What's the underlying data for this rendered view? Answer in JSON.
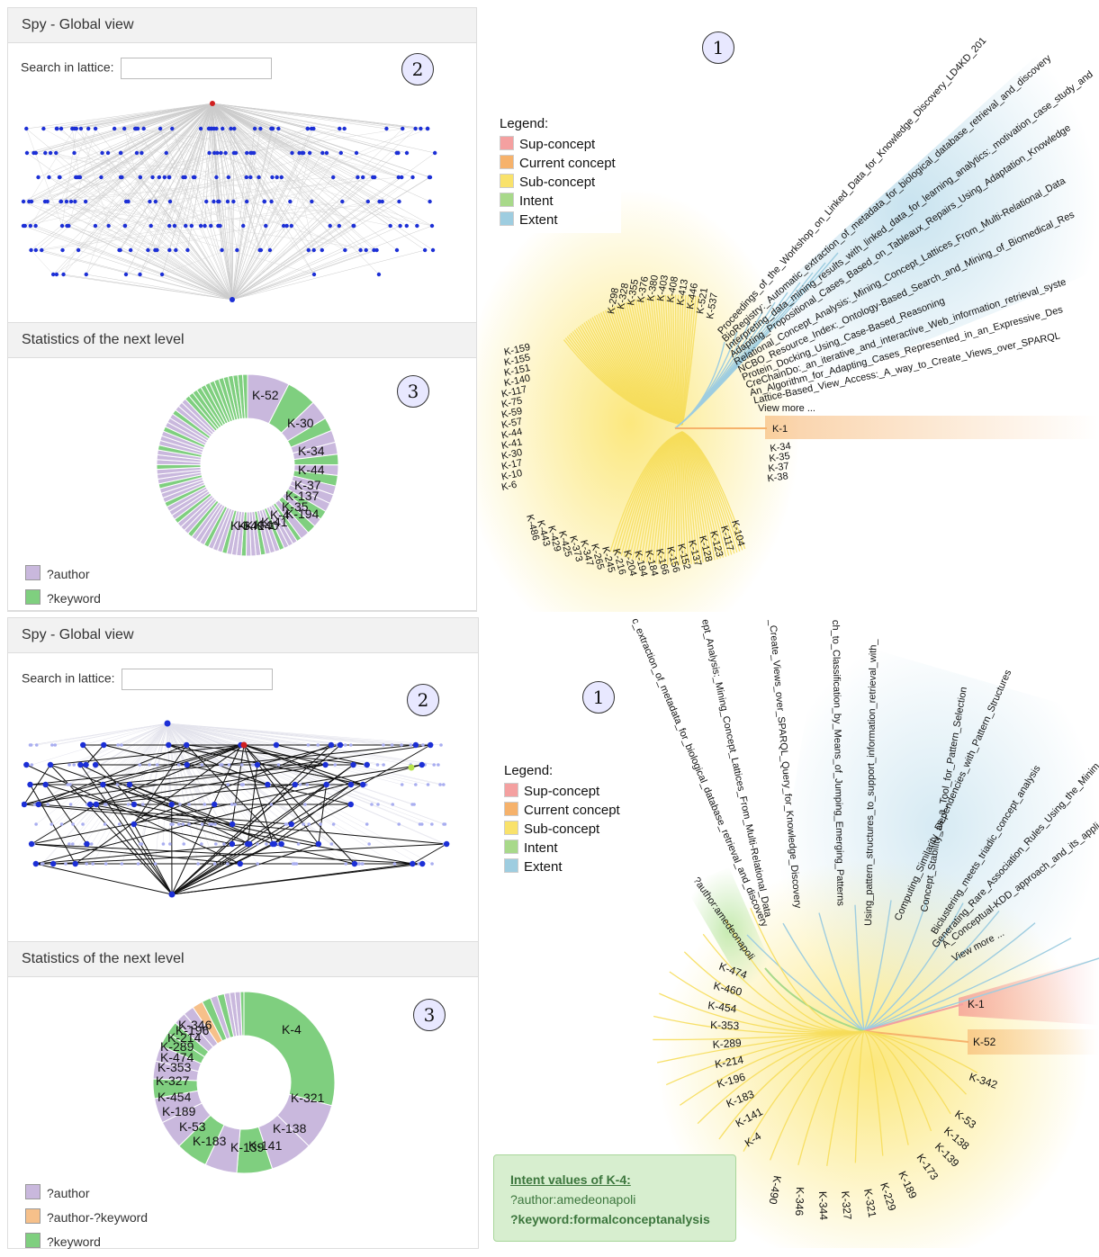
{
  "top": {
    "panel_title": "Spy - Global view",
    "search_label": "Search in lattice:",
    "search_value": "",
    "stats_title": "Statistics of the next level",
    "marker_1": "1",
    "marker_2": "2",
    "marker_3": "3",
    "legend": {
      "title": "Legend:",
      "items": [
        "Sup-concept",
        "Current concept",
        "Sub-concept",
        "Intent",
        "Extent"
      ]
    },
    "legend_colors": [
      "#f4a0a0",
      "#f6b26b",
      "#f9e26b",
      "#a8d98a",
      "#9ecde0"
    ],
    "stat_legend": [
      "?author",
      "?keyword"
    ],
    "stat_colors": [
      "#c9b8dd",
      "#7fcf7f"
    ],
    "donut_labels": [
      "K-52",
      "K-30",
      "K-34",
      "K-44",
      "K-37",
      "K-137",
      "K-35",
      "K-194",
      "K-4",
      "K-41",
      "K-1",
      "K-140",
      "K-40",
      "K-6"
    ],
    "current_label": "K-1",
    "sub_labels": [
      "K-34",
      "K-35",
      "K-37",
      "K-38"
    ],
    "left_labels": [
      "K-6",
      "K-10",
      "K-17",
      "K-30",
      "K-41",
      "K-44",
      "K-57",
      "K-59",
      "K-75",
      "K-117",
      "K-140",
      "K-151",
      "K-155",
      "K-159"
    ],
    "top_arc_labels": [
      "K-537",
      "K-521",
      "K-446",
      "K-413",
      "K-408",
      "K-403",
      "K-380",
      "K-376",
      "K-355",
      "K-328",
      "K-298"
    ],
    "bottom_arc_labels": [
      "K-486",
      "K-443",
      "K-429",
      "K-425",
      "K-373",
      "K-347",
      "K-265",
      "K-245",
      "K-216",
      "K-204",
      "K-194",
      "K-184",
      "K-166",
      "K-156",
      "K-152",
      "K-137",
      "K-128",
      "K-123",
      "K-117",
      "K-104"
    ],
    "extent_items": [
      "Proceedings_of_the_Workshop_on_Linked_Data_for_Knowledge_Discovery_LD4KD_201",
      "BioRegistry:_Automatic_extraction_of_metadata_for_biological_database_retrieval_and_discovery",
      "Interpreting_data_mining_results_with_linked_data_for_learning_analytics:_motivation_case_study_and",
      "Adapting_Propositional_Cases_Based_on_Tableaux_Repairs_Using_Adaptation_Knowledge",
      "Relational_Concept_Analysis:_Mining_Concept_Lattices_From_Multi-Relational_Data",
      "NCBO_Resource_Index:_Ontology-Based_Search_and_Mining_of_Biomedical_Res",
      "Protein_Docking_Using_Case-Based_Reasoning",
      "CreChainDo:_an_iterative_and_interactive_Web_information_retrieval_syste",
      "An_Algorithm_for_Adapting_Cases_Represented_in_an_Expressive_Des",
      "Lattice-Based_View_Access:_A_way_to_Create_Views_over_SPARQL",
      "View more ..."
    ]
  },
  "bottom": {
    "panel_title": "Spy - Global view",
    "search_label": "Search in lattice:",
    "search_value": "",
    "stats_title": "Statistics of the next level",
    "marker_1": "1",
    "marker_2": "2",
    "marker_3": "3",
    "legend": {
      "title": "Legend:",
      "items": [
        "Sup-concept",
        "Current concept",
        "Sub-concept",
        "Intent",
        "Extent"
      ]
    },
    "stat_legend": [
      "?author",
      "?author-?keyword",
      "?keyword"
    ],
    "stat_colors": [
      "#c9b8dd",
      "#f6c08a",
      "#7fcf7f"
    ],
    "donut_labels": [
      "K-4",
      "K-321",
      "K-138",
      "K-141",
      "K-139",
      "K-183",
      "K-53",
      "K-189",
      "K-454",
      "K-327",
      "K-353",
      "K-474",
      "K-289",
      "K-214",
      "K-346",
      "K-196"
    ],
    "intent_label": "?author:amedeonapoli",
    "sup_label": "K-1",
    "current_label": "K-52",
    "sub_right": [
      "K-342",
      "K-53",
      "K-138",
      "K-139",
      "K-173",
      "K-189",
      "K-229",
      "K-321",
      "K-327",
      "K-344",
      "K-346",
      "K-490"
    ],
    "left_labels": [
      "K-474",
      "K-460",
      "K-454",
      "K-353",
      "K-289",
      "K-214",
      "K-196",
      "K-183",
      "K-141",
      "K-4"
    ],
    "extent_items": [
      "c_extraction_of_metadata_for_biological_database_retrieval_and_discovery",
      "ept_Analysis:_Mining_Concept_Lattices_From_Multi-Relational_Data",
      "_Create_Views_over_SPARQL_Query_for_Knowledge_Discovery",
      "ch_to_Classification_by_Means_of_Jumping_Emerging_Patterns",
      "Using_pattern_structures_to_support_information_retrieval_with_",
      "Concept_Stability_as_a_Tool_for_Pattern_Selection",
      "Computing_Similarity_Dependencies_with_Pattern_Structures",
      "Biclustering_meets_triadic_concept_analysis",
      "Generating_Rare_Association_Rules_Using_the_Minim",
      "A_Conceptual-KDD_approach_and_its_appli",
      "View more ..."
    ],
    "intent_box": {
      "title": "Intent values of K-4:",
      "line1": "?author:amedeonapoli",
      "line2": "?keyword:formalconceptanalysis"
    }
  }
}
